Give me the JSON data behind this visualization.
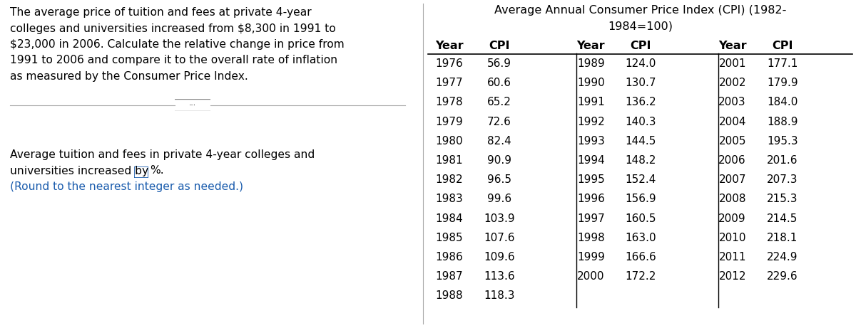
{
  "left_text_lines": [
    "The average price of tuition and fees at private 4-year",
    "colleges and universities increased from $8,300 in 1991 to",
    "$23,000 in 2006. Calculate the relative change in price from",
    "1991 to 2006 and compare it to the overall rate of inflation",
    "as measured by the Consumer Price Index."
  ],
  "bottom_text_line1": "Average tuition and fees in private 4-year colleges and",
  "bottom_text_line2_before": "universities increased by ",
  "bottom_text_line2_after": "%.",
  "bottom_text_line3": "(Round to the nearest integer as needed.)",
  "table_title_line1": "Average Annual Consumer Price Index (CPI) (1982-",
  "table_title_line2": "1984=100)",
  "col1_years": [
    1976,
    1977,
    1978,
    1979,
    1980,
    1981,
    1982,
    1983,
    1984,
    1985,
    1986,
    1987,
    1988
  ],
  "col1_cpi": [
    56.9,
    60.6,
    65.2,
    72.6,
    82.4,
    90.9,
    96.5,
    99.6,
    103.9,
    107.6,
    109.6,
    113.6,
    118.3
  ],
  "col2_years": [
    1989,
    1990,
    1991,
    1992,
    1993,
    1994,
    1995,
    1996,
    1997,
    1998,
    1999,
    2000
  ],
  "col2_cpi": [
    124.0,
    130.7,
    136.2,
    140.3,
    144.5,
    148.2,
    152.4,
    156.9,
    160.5,
    163.0,
    166.6,
    172.2
  ],
  "col3_years": [
    2001,
    2002,
    2003,
    2004,
    2005,
    2006,
    2007,
    2008,
    2009,
    2010,
    2011,
    2012
  ],
  "col3_cpi": [
    177.1,
    179.9,
    184.0,
    188.9,
    195.3,
    201.6,
    207.3,
    215.3,
    214.5,
    218.1,
    224.9,
    229.6
  ],
  "bg_color": "#ffffff",
  "text_color": "#000000",
  "blue_color": "#1a5cad",
  "divider_color": "#aaaaaa",
  "table_border_color": "#000000",
  "panel_divider_color": "#aaaaaa",
  "fig_width": 12.0,
  "fig_height": 4.61,
  "dpi": 100
}
